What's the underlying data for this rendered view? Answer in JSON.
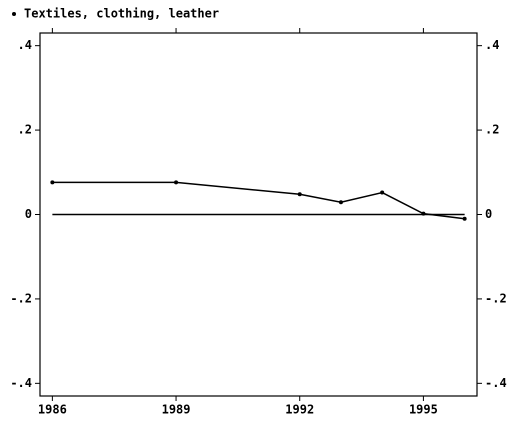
{
  "chart_data": {
    "type": "line",
    "x": [
      1986,
      1989,
      1992,
      1993,
      1994,
      1995,
      1996
    ],
    "series": [
      {
        "name": "Textiles, clothing, leather",
        "color": "#000000",
        "values": [
          0.076,
          0.076,
          0.048,
          0.029,
          0.052,
          0.002,
          -0.01
        ]
      }
    ],
    "xlim": [
      1985.7,
      1996.3
    ],
    "xticks": [
      1986,
      1989,
      1992,
      1995
    ],
    "ylim": [
      -0.43,
      0.43
    ],
    "yticks": [
      {
        "value": 0.4,
        "label": ".4"
      },
      {
        "value": 0.2,
        "label": ".2"
      },
      0,
      {
        "value": -0.2,
        "label": "-.2"
      },
      {
        "value": -0.4,
        "label": "-.4"
      }
    ],
    "yline": 0
  }
}
